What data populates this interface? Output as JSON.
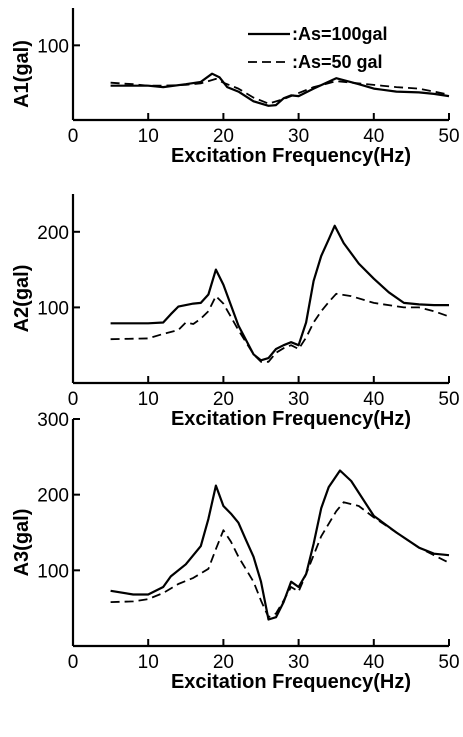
{
  "chart_data": [
    {
      "type": "line",
      "ylabel": "A1(gal)",
      "xlabel": "Excitation Frequency(Hz)",
      "xlim": [
        0,
        50
      ],
      "ylim": [
        0,
        150
      ],
      "xticks": [
        0,
        10,
        20,
        30,
        40,
        50
      ],
      "yticks": [
        100
      ],
      "legend": {
        "placement": "top-right",
        "entries": [
          ":As=100gal",
          ":As=50 gal"
        ]
      },
      "series": [
        {
          "name": ":As=100gal",
          "style": "solid",
          "x": [
            5,
            10,
            12,
            15,
            17,
            18.5,
            19.5,
            20.5,
            22,
            24,
            26,
            27,
            28,
            29,
            30,
            32,
            35,
            38,
            40,
            43,
            46,
            48,
            50
          ],
          "y": [
            46,
            46,
            44,
            48,
            51,
            62,
            57,
            44,
            38,
            25,
            19,
            20,
            29,
            33,
            32,
            42,
            56,
            48,
            42,
            38,
            37,
            35,
            32
          ]
        },
        {
          "name": ":As=50 gal",
          "style": "dashed",
          "x": [
            5,
            8,
            10,
            12,
            15,
            17,
            19,
            20,
            22,
            24,
            26,
            28,
            30,
            32,
            35,
            38,
            40,
            43,
            46,
            50
          ],
          "y": [
            50,
            48,
            46,
            46,
            47,
            49,
            55,
            50,
            42,
            30,
            22,
            28,
            36,
            44,
            52,
            49,
            47,
            44,
            42,
            34
          ]
        }
      ]
    },
    {
      "type": "line",
      "ylabel": "A2(gal)",
      "xlabel": "Excitation Frequency(Hz)",
      "xlim": [
        0,
        50
      ],
      "ylim": [
        0,
        250
      ],
      "xticks": [
        0,
        10,
        20,
        30,
        40,
        50
      ],
      "yticks": [
        100,
        200
      ],
      "series": [
        {
          "name": ":As=100gal",
          "style": "solid",
          "x": [
            5,
            8,
            10,
            12,
            13,
            14,
            16,
            17,
            18,
            19,
            20,
            22,
            24,
            25,
            26,
            27,
            28,
            29,
            30,
            31,
            32,
            33,
            34,
            34.8,
            36,
            38,
            40,
            42,
            44,
            46,
            48,
            50
          ],
          "y": [
            79,
            79,
            79,
            80,
            91,
            101,
            105,
            106,
            117,
            150,
            130,
            76,
            38,
            30,
            33,
            45,
            50,
            54,
            50,
            80,
            135,
            168,
            190,
            208,
            185,
            158,
            138,
            120,
            106,
            104,
            103,
            103
          ]
        },
        {
          "name": ":As=50 gal",
          "style": "dashed",
          "x": [
            5,
            10,
            12,
            14,
            15,
            16,
            17,
            18,
            19,
            20,
            22,
            24,
            25,
            26,
            27,
            28,
            29,
            30,
            31,
            32,
            33,
            34,
            35,
            37,
            40,
            44,
            46,
            48,
            50
          ],
          "y": [
            58,
            59,
            65,
            70,
            80,
            78,
            85,
            95,
            115,
            105,
            70,
            38,
            28,
            28,
            40,
            46,
            50,
            45,
            60,
            80,
            95,
            107,
            118,
            115,
            106,
            100,
            100,
            95,
            88
          ]
        }
      ]
    },
    {
      "type": "line",
      "ylabel": "A3(gal)",
      "xlabel": "Excitation Frequency(Hz)",
      "xlim": [
        0,
        50
      ],
      "ylim": [
        0,
        300
      ],
      "xticks": [
        0,
        10,
        20,
        30,
        40,
        50
      ],
      "yticks": [
        100,
        200,
        300
      ],
      "series": [
        {
          "name": ":As=100gal",
          "style": "solid",
          "x": [
            5,
            8,
            10,
            12,
            13,
            15,
            17,
            18,
            19,
            20,
            21,
            22,
            23,
            24,
            25,
            26,
            27,
            28,
            29,
            30,
            31,
            32,
            33,
            34,
            35.5,
            37,
            40,
            43,
            46,
            48,
            50
          ],
          "y": [
            73,
            68,
            68,
            78,
            92,
            108,
            132,
            168,
            212,
            185,
            175,
            163,
            140,
            118,
            85,
            35,
            38,
            58,
            85,
            78,
            95,
            135,
            182,
            210,
            232,
            218,
            172,
            150,
            130,
            122,
            120
          ]
        },
        {
          "name": ":As=50 gal",
          "style": "dashed",
          "x": [
            5,
            8,
            10,
            12,
            14,
            16,
            18,
            19,
            20,
            21,
            22,
            24,
            25,
            26,
            27,
            28,
            29,
            30,
            31,
            33,
            35,
            36,
            38,
            40,
            43,
            46,
            48,
            50
          ],
          "y": [
            58,
            59,
            62,
            70,
            82,
            90,
            102,
            128,
            153,
            138,
            118,
            85,
            60,
            38,
            43,
            60,
            78,
            72,
            95,
            145,
            178,
            190,
            185,
            170,
            150,
            130,
            120,
            110
          ]
        }
      ]
    }
  ]
}
